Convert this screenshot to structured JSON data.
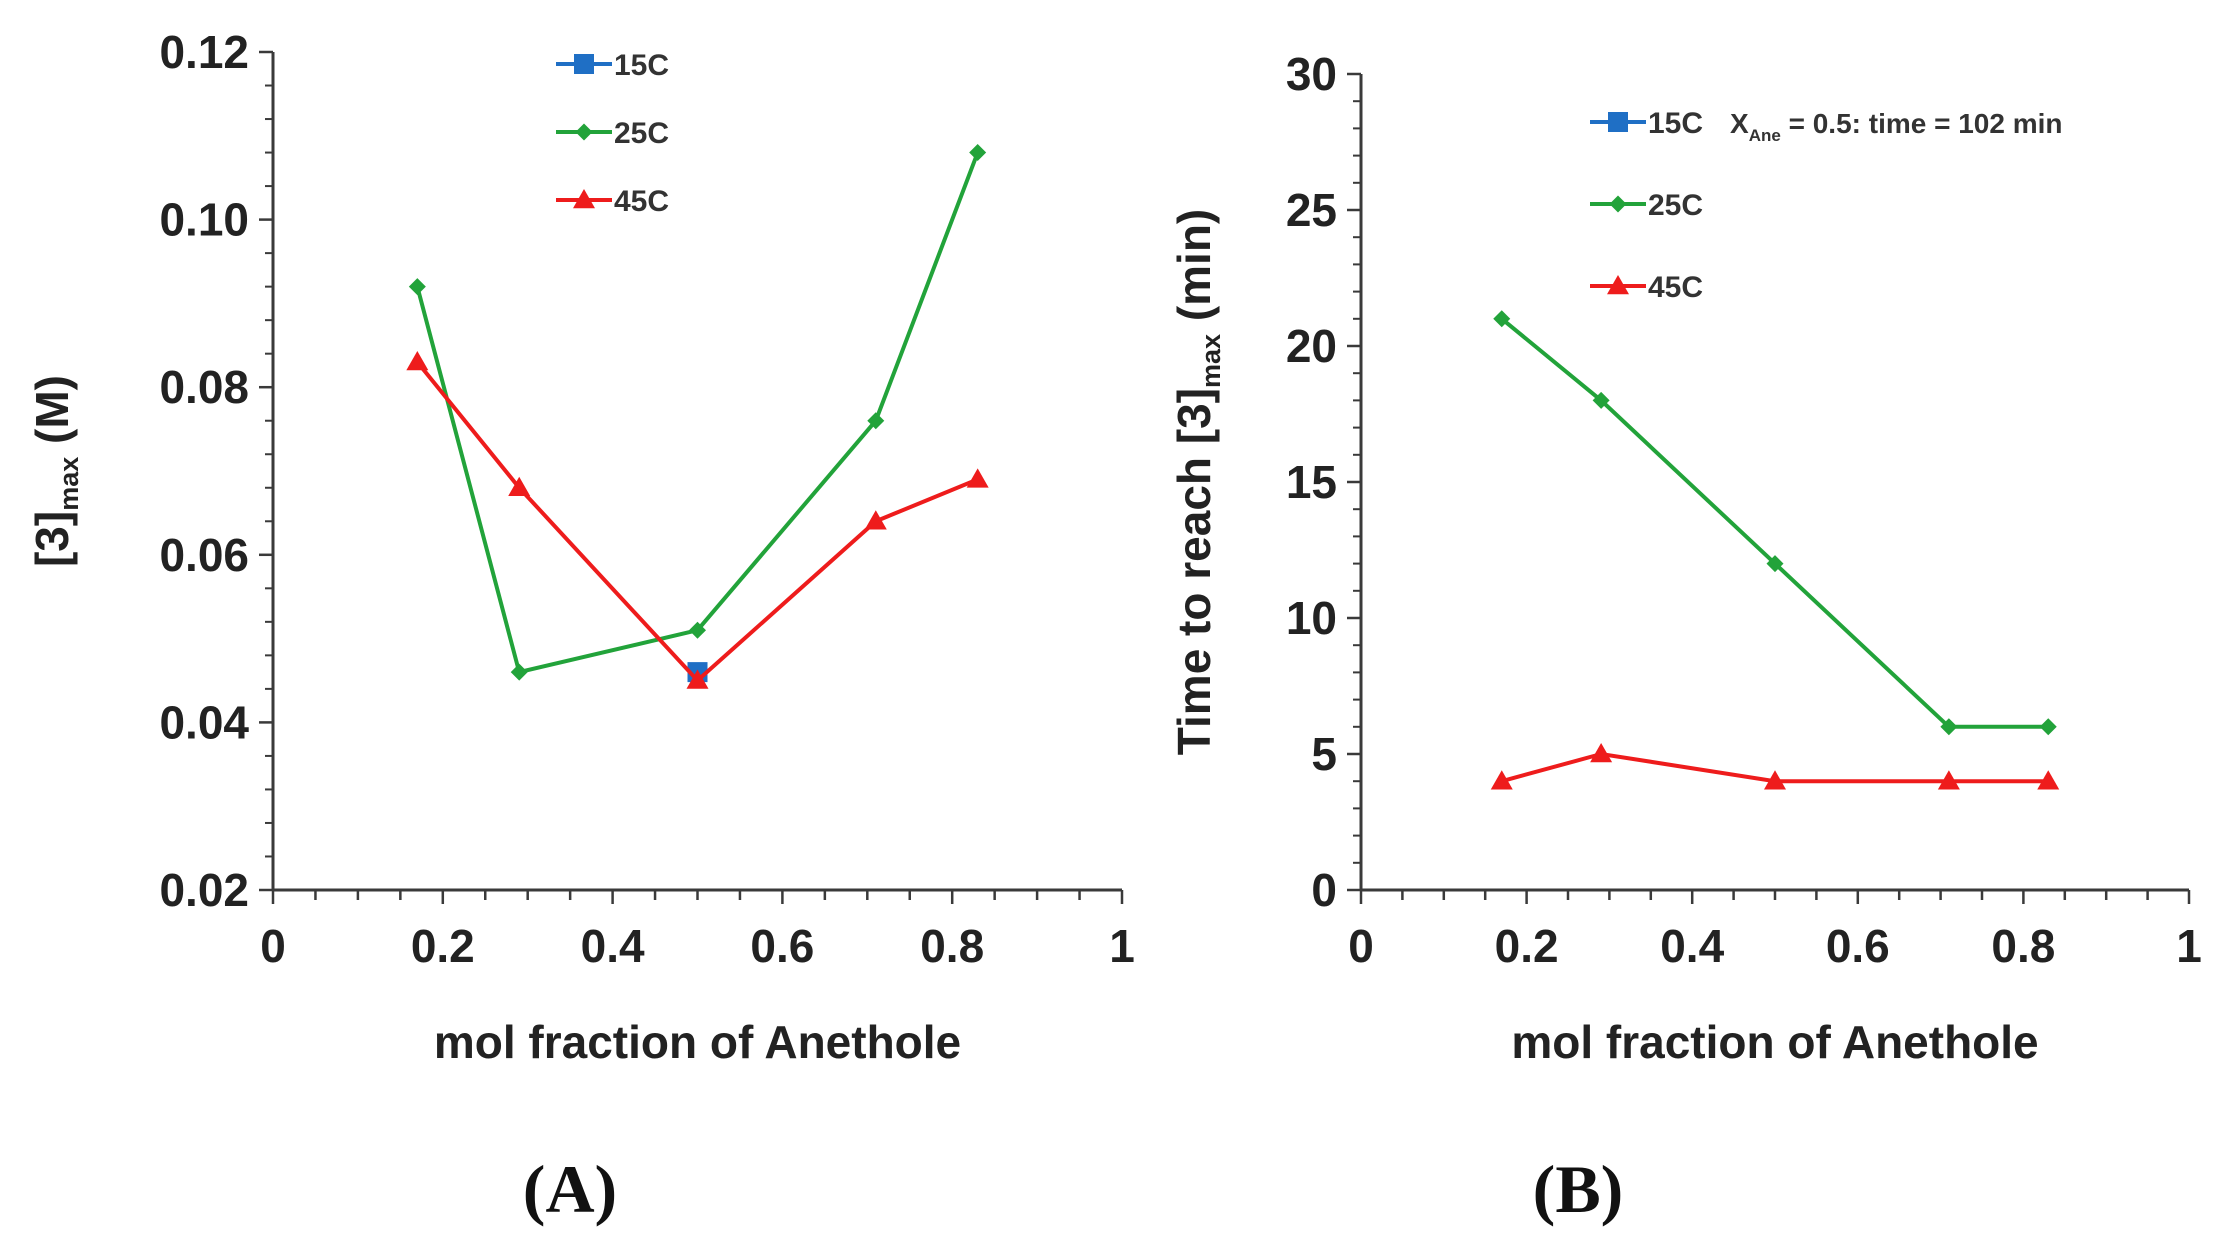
{
  "chart_data": [
    {
      "type": "line",
      "panel_label": "(A)",
      "title": "",
      "xlabel": "mol fraction of Anethole",
      "ylabel": {
        "main": "[3]",
        "sub": "max",
        "unit": "(M)"
      },
      "xlim": [
        0,
        1
      ],
      "ylim": [
        0.02,
        0.12
      ],
      "x_ticks": [
        0,
        0.2,
        0.4,
        0.6,
        0.8,
        1
      ],
      "x_tick_labels": [
        "0",
        "0.2",
        "0.4",
        "0.6",
        "0.8",
        "1"
      ],
      "y_ticks": [
        0.02,
        0.04,
        0.06,
        0.08,
        0.1,
        0.12
      ],
      "y_tick_labels": [
        "0.02",
        "0.04",
        "0.06",
        "0.08",
        "0.10",
        "0.12"
      ],
      "grid": false,
      "legend_position": "top-center",
      "series": [
        {
          "name": "15C",
          "color": "#1f6fc5",
          "marker": "square",
          "x": [
            0.5
          ],
          "y": [
            0.046
          ]
        },
        {
          "name": "25C",
          "color": "#22a33a",
          "marker": "diamond",
          "x": [
            0.17,
            0.29,
            0.5,
            0.71,
            0.83
          ],
          "y": [
            0.092,
            0.046,
            0.051,
            0.076,
            0.108
          ]
        },
        {
          "name": "45C",
          "color": "#ee1c1c",
          "marker": "triangle",
          "x": [
            0.17,
            0.29,
            0.5,
            0.71,
            0.83
          ],
          "y": [
            0.083,
            0.068,
            0.045,
            0.064,
            0.069
          ]
        }
      ]
    },
    {
      "type": "line",
      "panel_label": "(B)",
      "title": "",
      "xlabel": "mol fraction of Anethole",
      "ylabel": {
        "main": "Time to reach [3]",
        "sub": "max",
        "unit": "(min)"
      },
      "xlim": [
        0,
        1
      ],
      "ylim": [
        0,
        30
      ],
      "x_ticks": [
        0,
        0.2,
        0.4,
        0.6,
        0.8,
        1
      ],
      "x_tick_labels": [
        "0",
        "0.2",
        "0.4",
        "0.6",
        "0.8",
        "1"
      ],
      "y_ticks": [
        0,
        5,
        10,
        15,
        20,
        25,
        30
      ],
      "y_tick_labels": [
        "0",
        "5",
        "10",
        "15",
        "20",
        "25",
        "30"
      ],
      "grid": false,
      "legend_position": "top-right",
      "legend_note": {
        "prefix": "X",
        "sub": "Ane",
        "text": " = 0.5: time = 102 min"
      },
      "series": [
        {
          "name": "15C",
          "color": "#1f6fc5",
          "marker": "square",
          "x": [],
          "y": []
        },
        {
          "name": "25C",
          "color": "#22a33a",
          "marker": "diamond",
          "x": [
            0.17,
            0.29,
            0.5,
            0.71,
            0.83
          ],
          "y": [
            21,
            18,
            12,
            6,
            6
          ]
        },
        {
          "name": "45C",
          "color": "#ee1c1c",
          "marker": "triangle",
          "x": [
            0.17,
            0.29,
            0.5,
            0.71,
            0.83
          ],
          "y": [
            4,
            5,
            4,
            4,
            4
          ]
        }
      ]
    }
  ]
}
